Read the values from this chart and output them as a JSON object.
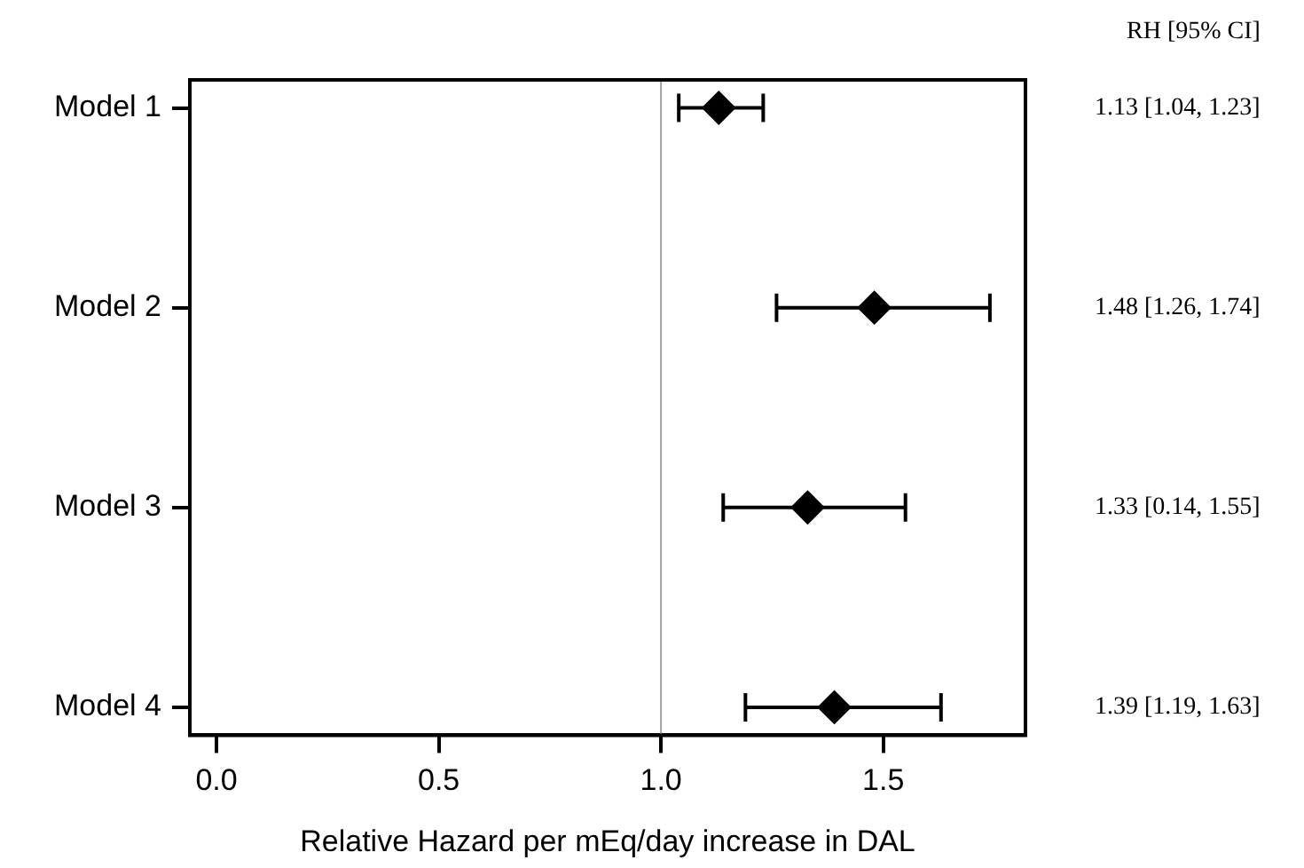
{
  "chart_data": {
    "type": "scatter",
    "orientation": "horizontal",
    "categories": [
      "Model 1",
      "Model 2",
      "Model 3",
      "Model 4"
    ],
    "values": [
      1.13,
      1.48,
      1.33,
      1.39
    ],
    "errors": [
      [
        1.04,
        1.23
      ],
      [
        1.26,
        1.74
      ],
      [
        1.14,
        1.55
      ],
      [
        1.19,
        1.63
      ]
    ],
    "value_labels": [
      "1.13 [1.04, 1.23]",
      "1.48 [1.26, 1.74]",
      "1.33 [0.14, 1.55]",
      "1.39 [1.19, 1.63]"
    ],
    "colors": [
      "#000000",
      "#000000",
      "#000000",
      "#000000"
    ],
    "marker": "diamond",
    "xlabel": "Relative Hazard per mEq/day increase in DAL",
    "xlim": [
      -0.06,
      1.82
    ],
    "xticks": [
      {
        "value": 0,
        "label": "0.0"
      },
      {
        "value": 0.5,
        "label": "0.5"
      },
      {
        "value": 1,
        "label": "1.0"
      },
      {
        "value": 1.5,
        "label": "1.5"
      }
    ],
    "ref_lines": [
      {
        "axis": "x",
        "value": 1,
        "color": "#a0a0a0"
      }
    ],
    "annotations": [
      "RH [95% CI]"
    ],
    "grid": false,
    "legend": false
  }
}
